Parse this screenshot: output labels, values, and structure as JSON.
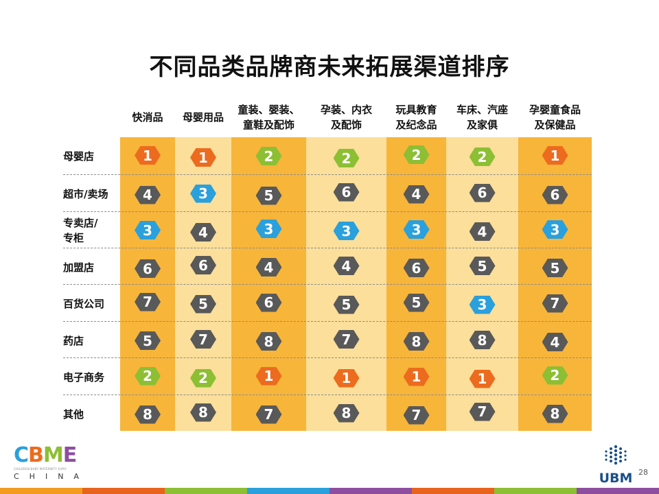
{
  "title": "不同品类品牌商未来拓展渠道排序",
  "columns": [
    "快消品",
    "母婴用品",
    "童装、婴装、\n童鞋及配饰",
    "孕装、内衣\n及配饰",
    "玩具教育\n及纪念品",
    "车床、汽座\n及家俱",
    "孕婴童食品\n及保健品"
  ],
  "rows": [
    "母婴店",
    "超市/卖场",
    "专卖店/\n专柜",
    "加盟店",
    "百货公司",
    "药店",
    "电子商务",
    "其他"
  ],
  "rank_colors": {
    "1": "#ec6b1f",
    "2": "#8cbf34",
    "3": "#2aa0dc",
    "other": "#595959"
  },
  "chart_data": {
    "type": "table",
    "title": "不同品类品牌商未来拓展渠道排序",
    "columns": [
      "快消品",
      "母婴用品",
      "童装、婴装、童鞋及配饰",
      "孕装、内衣及配饰",
      "玩具教育及纪念品",
      "车床、汽座及家俱",
      "孕婴童食品及保健品"
    ],
    "rows": [
      "母婴店",
      "超市/卖场",
      "专卖店/专柜",
      "加盟店",
      "百货公司",
      "药店",
      "电子商务",
      "其他"
    ],
    "values": [
      [
        1,
        1,
        2,
        2,
        2,
        2,
        1
      ],
      [
        4,
        3,
        5,
        6,
        4,
        6,
        6
      ],
      [
        3,
        4,
        3,
        3,
        3,
        4,
        3
      ],
      [
        6,
        6,
        4,
        4,
        6,
        5,
        5
      ],
      [
        7,
        5,
        6,
        5,
        5,
        3,
        7
      ],
      [
        5,
        7,
        8,
        7,
        8,
        8,
        4
      ],
      [
        2,
        2,
        1,
        1,
        1,
        1,
        2
      ],
      [
        8,
        8,
        7,
        8,
        7,
        7,
        8
      ]
    ]
  },
  "footer": {
    "logo_text": "CBME",
    "logo_sub": "CHILDREN·BABY·MATERNITY EXPO",
    "logo_region": "CHINA",
    "company": "UBM",
    "page_number": "28"
  },
  "stripe_colors": [
    "#f39c1f",
    "#e8631c",
    "#8cbf34",
    "#2aa0dc",
    "#8e4ea0",
    "#e8631c",
    "#8cbf34",
    "#8e4ea0"
  ]
}
